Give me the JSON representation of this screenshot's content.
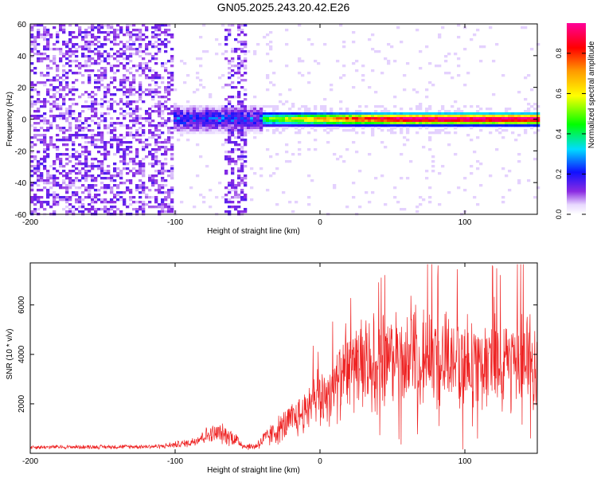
{
  "figure_title": "GN05.2025.243.20.42.E26",
  "colors": {
    "snr_line": "#ee2222",
    "axis": "#000000",
    "background": "#ffffff"
  },
  "chart_data": [
    {
      "type": "heatmap",
      "title": "GN05.2025.243.20.42.E26",
      "xlabel": "Height of straight line (km)",
      "ylabel": "Frequency (Hz)",
      "xlim": [
        -200,
        150
      ],
      "ylim": [
        -60,
        60
      ],
      "x_ticks": [
        -200,
        -100,
        0,
        100
      ],
      "x_tick_labels": [
        "-200",
        "-100",
        "0",
        "100"
      ],
      "y_ticks": [
        -60,
        -40,
        -20,
        0,
        20,
        40,
        60
      ],
      "y_tick_labels": [
        "-60",
        "-40",
        "-20",
        "0",
        "20",
        "40",
        "60"
      ],
      "colorbar": {
        "label": "Normalized spectral amplitude",
        "range": [
          0,
          0.95
        ],
        "ticks": [
          0.0,
          0.2,
          0.4,
          0.6,
          0.8
        ],
        "tick_labels": [
          "0.0",
          "0.2",
          "0.4",
          "0.6",
          "0.8"
        ],
        "colormap": "rainbow (white-violet-blue-cyan-green-yellow-orange-red-magenta)"
      },
      "regions": [
        {
          "x_range": [
            -200,
            -100
          ],
          "freq_range": [
            -60,
            60
          ],
          "amplitude": 0.05,
          "pattern": "broadband noise"
        },
        {
          "x_range": [
            -65,
            -50
          ],
          "freq_range": [
            -60,
            60
          ],
          "amplitude": 0.04,
          "pattern": "broadband noise"
        },
        {
          "x_range": [
            -100,
            -40
          ],
          "freq_range": [
            -10,
            10
          ],
          "amplitude": 0.22,
          "pattern": "diffuse line"
        },
        {
          "x_range": [
            -40,
            150
          ],
          "freq_range": [
            -4,
            4
          ],
          "amplitude": 0.9,
          "pattern": "carrier line near 0 Hz"
        }
      ]
    },
    {
      "type": "line",
      "xlabel": "Height of straight line (km)",
      "ylabel": "SNR (10 * v/v)",
      "xlim": [
        -200,
        150
      ],
      "ylim": [
        0,
        7700
      ],
      "x_ticks": [
        -200,
        -100,
        0,
        100
      ],
      "x_tick_labels": [
        "-200",
        "-100",
        "0",
        "100"
      ],
      "y_ticks": [
        2000,
        4000,
        6000
      ],
      "y_tick_labels": [
        "2000",
        "4000",
        "6000"
      ],
      "series": [
        {
          "name": "SNR",
          "x": [
            -200,
            -150,
            -110,
            -90,
            -80,
            -70,
            -60,
            -52,
            -45,
            -40,
            -30,
            -20,
            -10,
            0,
            10,
            20,
            30,
            40,
            60,
            80,
            100,
            120,
            140,
            150
          ],
          "values": [
            250,
            260,
            280,
            420,
            700,
            820,
            650,
            280,
            270,
            500,
            900,
            1300,
            1700,
            2200,
            2700,
            3200,
            3600,
            3800,
            3800,
            3800,
            3700,
            3700,
            3600,
            3600
          ],
          "noise_amplitude": [
            90,
            90,
            100,
            180,
            350,
            450,
            400,
            150,
            150,
            350,
            600,
            800,
            1000,
            1300,
            1500,
            1800,
            2000,
            2100,
            2100,
            2100,
            2100,
            2000,
            2000,
            2000
          ]
        }
      ]
    }
  ]
}
